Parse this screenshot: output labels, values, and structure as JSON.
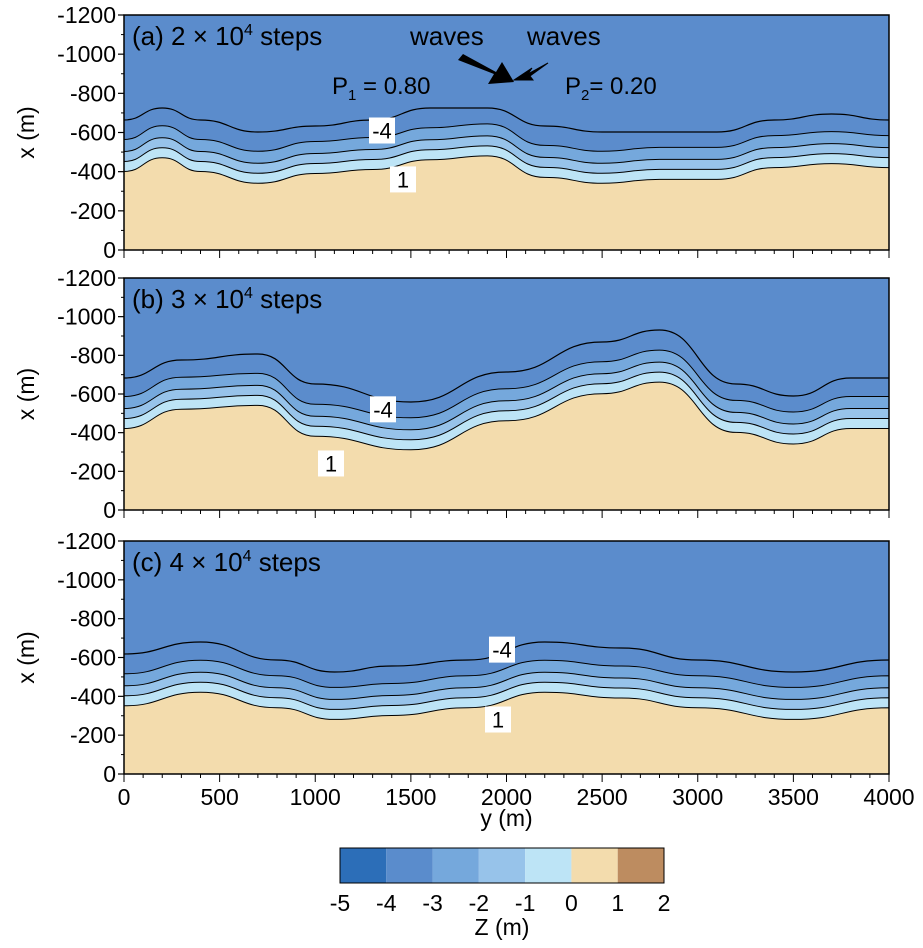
{
  "chart_data": {
    "type": "contour",
    "xlabel": "y (m)",
    "ylabel": "x (m)",
    "xlim": [
      0,
      4000
    ],
    "ylim": [
      0,
      -1200
    ],
    "x_ticks": [
      "0",
      "500",
      "1000",
      "1500",
      "2000",
      "2500",
      "3000",
      "3500",
      "4000"
    ],
    "y_ticks": [
      "-1200",
      "-1000",
      "-800",
      "-600",
      "-400",
      "-200",
      "0"
    ],
    "panels": [
      {
        "id": "a",
        "title_prefix": "(a) 2",
        "title_exp": "4",
        "title_suffix": "steps",
        "shore_profile": [
          [
            0,
            -360
          ],
          [
            200,
            -430
          ],
          [
            400,
            -360
          ],
          [
            700,
            -300
          ],
          [
            1000,
            -350
          ],
          [
            1300,
            -370
          ],
          [
            1600,
            -420
          ],
          [
            1900,
            -440
          ],
          [
            2200,
            -330
          ],
          [
            2500,
            -300
          ],
          [
            2800,
            -320
          ],
          [
            3100,
            -320
          ],
          [
            3400,
            -380
          ],
          [
            3700,
            -400
          ],
          [
            4000,
            -380
          ]
        ],
        "contour_labels": [
          "-4",
          "1"
        ],
        "waves_label": "waves",
        "p1_label": "P",
        "p1_sub": "1",
        "p1_value": "= 0.80",
        "p2_label": "P",
        "p2_sub": "2",
        "p2_value": "= 0.20"
      },
      {
        "id": "b",
        "title_prefix": "(b) 3",
        "title_exp": "4",
        "title_suffix": "steps",
        "shore_profile": [
          [
            0,
            -380
          ],
          [
            300,
            -480
          ],
          [
            700,
            -500
          ],
          [
            1000,
            -340
          ],
          [
            1500,
            -270
          ],
          [
            2000,
            -420
          ],
          [
            2500,
            -560
          ],
          [
            2800,
            -620
          ],
          [
            3200,
            -360
          ],
          [
            3500,
            -300
          ],
          [
            3800,
            -380
          ],
          [
            4000,
            -380
          ]
        ],
        "contour_labels": [
          "-4",
          "1"
        ]
      },
      {
        "id": "c",
        "title_prefix": "(c) 4",
        "title_exp": "4",
        "title_suffix": "steps",
        "shore_profile": [
          [
            0,
            -310
          ],
          [
            400,
            -380
          ],
          [
            800,
            -300
          ],
          [
            1100,
            -240
          ],
          [
            1400,
            -260
          ],
          [
            1800,
            -300
          ],
          [
            2200,
            -380
          ],
          [
            2600,
            -350
          ],
          [
            3000,
            -300
          ],
          [
            3500,
            -240
          ],
          [
            4000,
            -300
          ]
        ],
        "contour_labels": [
          "-4",
          "1"
        ]
      }
    ],
    "colorbar": {
      "label": "Z (m)",
      "ticks": [
        "-5",
        "-4",
        "-3",
        "-2",
        "-1",
        "0",
        "1",
        "2"
      ],
      "colors": [
        "#2c6eb8",
        "#5a8ccc",
        "#75a8dc",
        "#97c3ea",
        "#bde4f6",
        "#f3dcad",
        "#bd8c60"
      ]
    },
    "colors": {
      "deep": "#5b8ccc",
      "sand": "#f3dcad",
      "band1": "#75a8dc",
      "band2": "#97c3ea",
      "band3": "#bde4f6"
    }
  },
  "arrows": {
    "big_label": "waves",
    "small_label": "waves"
  }
}
